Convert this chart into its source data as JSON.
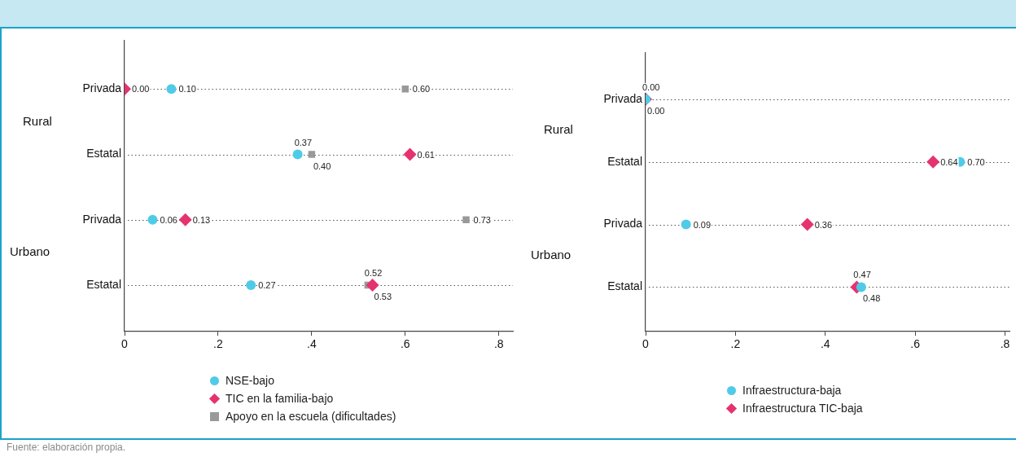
{
  "chart_data": [
    {
      "type": "scatter",
      "orientation": "horizontal",
      "categories": [
        "Privada",
        "Estatal",
        "Privada",
        "Estatal"
      ],
      "xlim": [
        0,
        0.83
      ],
      "xticks": [
        0,
        {
          "value": 0.2,
          "label": ".2"
        },
        {
          "value": 0.4,
          "label": ".4"
        },
        {
          "value": 0.6,
          "label": ".6"
        },
        {
          "value": 0.8,
          "label": ".8"
        }
      ],
      "grid": "y",
      "legend": "bottom",
      "annotations": [
        "Rural",
        "Urbano",
        "Fuente: elaboración propia."
      ],
      "series": [
        {
          "name": "NSE-bajo",
          "color": "#4fcbe8",
          "marker": "circle",
          "values": [
            0.1,
            0.37,
            0.06,
            0.27
          ],
          "value_labels": [
            "0.10",
            "0.37",
            "0.06",
            "0.27"
          ]
        },
        {
          "name": "TIC en la familia-bajo",
          "color": "#e5336f",
          "marker": "diamond",
          "values": [
            0.0,
            0.61,
            0.13,
            0.53
          ],
          "value_labels": [
            "0.00",
            "0.61",
            "0.13",
            "0.53"
          ]
        },
        {
          "name": "Apoyo en la escuela (dificultades)",
          "color": "#999999",
          "marker": "square",
          "values": [
            0.6,
            0.4,
            0.73,
            0.52
          ],
          "value_labels": [
            "0.60",
            "0.40",
            "0.73",
            "0.52"
          ]
        }
      ]
    },
    {
      "type": "scatter",
      "orientation": "horizontal",
      "categories": [
        "Privada",
        "Estatal",
        "Privada",
        "Estatal"
      ],
      "xlim": [
        0,
        0.81
      ],
      "xticks": [
        0,
        {
          "value": 0.2,
          "label": ".2"
        },
        {
          "value": 0.4,
          "label": ".4"
        },
        {
          "value": 0.6,
          "label": ".6"
        },
        {
          "value": 0.8,
          "label": ".8"
        }
      ],
      "grid": "y",
      "legend": "bottom",
      "annotations": [
        "Rural",
        "Urbano"
      ],
      "series": [
        {
          "name": "Infraestructura-baja",
          "color": "#4fcbe8",
          "marker": "circle",
          "values": [
            0.0,
            0.7,
            0.09,
            0.48
          ],
          "value_labels": [
            "0.00",
            "0.70",
            "0.09",
            "0.48"
          ]
        },
        {
          "name": "Infraestructura TIC-baja",
          "color": "#e5336f",
          "marker": "diamond",
          "values": [
            0.0,
            0.64,
            0.36,
            0.47
          ],
          "value_labels": [
            "0.00",
            "0.64",
            "0.36",
            "0.47"
          ]
        }
      ]
    }
  ]
}
